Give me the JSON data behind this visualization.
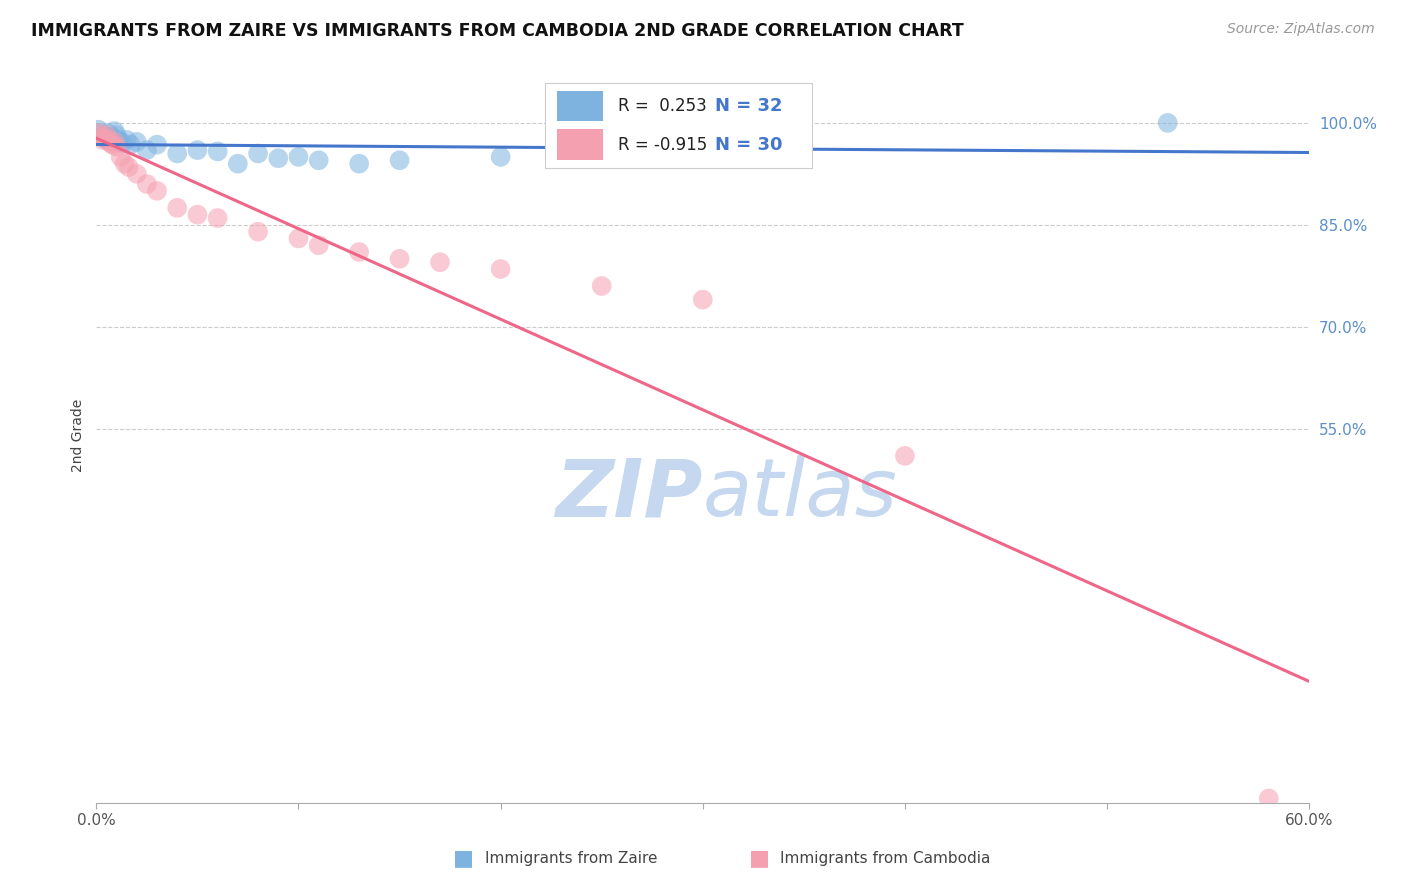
{
  "title": "IMMIGRANTS FROM ZAIRE VS IMMIGRANTS FROM CAMBODIA 2ND GRADE CORRELATION CHART",
  "source": "Source: ZipAtlas.com",
  "ylabel": "2nd Grade",
  "xmin": 0.0,
  "xmax": 0.6,
  "ymin": 0.0,
  "ymax": 1.08,
  "yticks": [
    0.55,
    0.7,
    0.85,
    1.0
  ],
  "ytick_labels": [
    "55.0%",
    "70.0%",
    "85.0%",
    "100.0%"
  ],
  "R_zaire": 0.253,
  "N_zaire": 32,
  "R_cambodia": -0.915,
  "N_cambodia": 30,
  "blue_color": "#7EB3E0",
  "pink_color": "#F5A0B0",
  "blue_line_color": "#4477CC",
  "pink_line_color": "#EE6688",
  "watermark_zip_color": "#C5D8F0",
  "watermark_atlas_color": "#C5D8F0",
  "zaire_x": [
    0.001,
    0.002,
    0.003,
    0.004,
    0.005,
    0.006,
    0.007,
    0.008,
    0.009,
    0.01,
    0.011,
    0.012,
    0.013,
    0.015,
    0.017,
    0.02,
    0.025,
    0.03,
    0.04,
    0.05,
    0.06,
    0.07,
    0.08,
    0.09,
    0.1,
    0.11,
    0.13,
    0.15,
    0.2,
    0.25,
    0.28,
    0.53
  ],
  "zaire_y": [
    0.99,
    0.985,
    0.98,
    0.978,
    0.975,
    0.985,
    0.98,
    0.978,
    0.988,
    0.982,
    0.975,
    0.972,
    0.97,
    0.975,
    0.968,
    0.972,
    0.96,
    0.968,
    0.955,
    0.96,
    0.958,
    0.94,
    0.955,
    0.948,
    0.95,
    0.945,
    0.94,
    0.945,
    0.95,
    0.955,
    0.955,
    1.0
  ],
  "cambodia_x": [
    0.001,
    0.002,
    0.003,
    0.004,
    0.005,
    0.006,
    0.007,
    0.008,
    0.009,
    0.01,
    0.012,
    0.014,
    0.016,
    0.02,
    0.025,
    0.03,
    0.04,
    0.05,
    0.06,
    0.08,
    0.1,
    0.11,
    0.13,
    0.15,
    0.17,
    0.2,
    0.25,
    0.3,
    0.4,
    0.58
  ],
  "cambodia_y": [
    0.985,
    0.98,
    0.975,
    0.978,
    0.982,
    0.975,
    0.97,
    0.968,
    0.972,
    0.965,
    0.95,
    0.94,
    0.935,
    0.925,
    0.91,
    0.9,
    0.875,
    0.865,
    0.86,
    0.84,
    0.83,
    0.82,
    0.81,
    0.8,
    0.795,
    0.785,
    0.76,
    0.74,
    0.51,
    0.006
  ]
}
